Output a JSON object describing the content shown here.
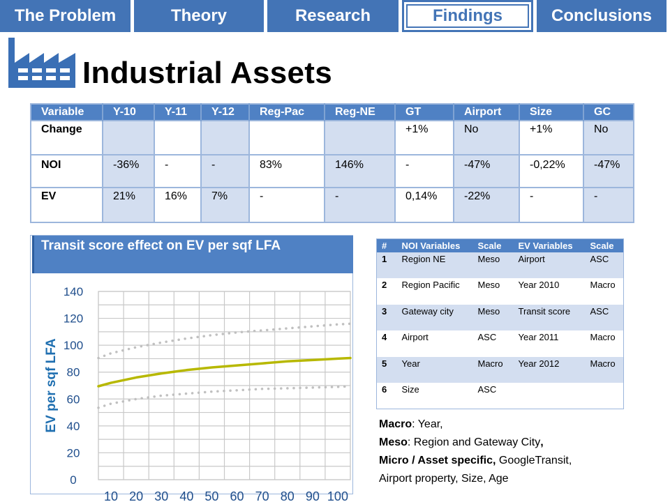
{
  "nav": {
    "tabs": [
      {
        "label": "The Problem",
        "width": 187,
        "active": false
      },
      {
        "label": "Theory",
        "width": 186,
        "active": false
      },
      {
        "label": "Research",
        "width": 188,
        "active": false
      },
      {
        "label": "Findings",
        "width": 188,
        "active": true
      },
      {
        "label": "Conclusions",
        "width": 186,
        "active": false
      }
    ]
  },
  "page": {
    "title": "Industrial Assets"
  },
  "main_table": {
    "headers": [
      "Variable",
      "Y-10",
      "Y-11",
      "Y-12",
      "Reg-Pac",
      "Reg-NE",
      "GT",
      "Airport",
      "Size",
      "GC"
    ],
    "rows": [
      {
        "cells": [
          "Change",
          "",
          "",
          "",
          "",
          "",
          "+1%",
          "No",
          "+1%",
          "No"
        ]
      },
      {
        "cells": [
          "NOI",
          "-36%",
          "-",
          "-",
          "83%",
          "146%",
          "-",
          "-47%",
          "-0,22%",
          "-47%"
        ]
      },
      {
        "cells": [
          "EV",
          "21%",
          "16%",
          "7%",
          "-",
          "-",
          "0,14%",
          "-22%",
          "-",
          "-"
        ]
      }
    ]
  },
  "chart_data": {
    "type": "line",
    "title": "Transit score effect on EV per sqf LFA",
    "xlabel": "",
    "ylabel": "EV per sqf LFA",
    "xlim": [
      5,
      105
    ],
    "ylim": [
      0,
      140
    ],
    "x_ticks": [
      10,
      20,
      30,
      40,
      50,
      60,
      70,
      80,
      90,
      100
    ],
    "y_ticks": [
      0,
      20,
      40,
      60,
      80,
      100,
      120,
      140
    ],
    "grid": true,
    "series": [
      {
        "role": "fit",
        "color": "#b7b800",
        "style": "solid",
        "x": [
          5,
          10,
          20,
          30,
          40,
          50,
          60,
          70,
          80,
          90,
          100,
          105
        ],
        "y": [
          69.5,
          72,
          76,
          79,
          81.5,
          83.5,
          85,
          86.5,
          88,
          89,
          90,
          90.5
        ]
      },
      {
        "role": "upper-bound",
        "color": "#c0c0c0",
        "style": "dotted",
        "x": [
          5,
          10,
          20,
          30,
          40,
          50,
          60,
          70,
          80,
          90,
          100,
          105
        ],
        "y": [
          90.5,
          94,
          98.5,
          102,
          105,
          107.5,
          109.5,
          111,
          112.5,
          114,
          115.5,
          116
        ]
      },
      {
        "role": "lower-bound",
        "color": "#c0c0c0",
        "style": "dotted",
        "x": [
          5,
          10,
          20,
          30,
          40,
          50,
          60,
          70,
          80,
          90,
          100,
          105
        ],
        "y": [
          53.5,
          56.5,
          60,
          62.5,
          64,
          65.5,
          66.5,
          67.5,
          68,
          68.5,
          69,
          69.5
        ]
      }
    ]
  },
  "var_table": {
    "headers": [
      "#",
      "NOI Variables",
      "Scale",
      "EV Variables",
      "Scale"
    ],
    "rows": [
      {
        "cells": [
          "1",
          "Region NE",
          "Meso",
          "Airport",
          "ASC"
        ],
        "shade": true
      },
      {
        "cells": [
          "2",
          "Region Pacific",
          "Meso",
          "Year 2010",
          "Macro"
        ],
        "shade": false
      },
      {
        "cells": [
          "3",
          "Gateway city",
          "Meso",
          "Transit score",
          "ASC"
        ],
        "shade": true
      },
      {
        "cells": [
          "4",
          "Airport",
          "ASC",
          "Year 2011",
          "Macro"
        ],
        "shade": false
      },
      {
        "cells": [
          "5",
          "Year",
          "Macro",
          "Year 2012",
          "Macro"
        ],
        "shade": true
      },
      {
        "cells": [
          "6",
          "Size",
          "ASC",
          "",
          ""
        ],
        "shade": false
      }
    ]
  },
  "notes": {
    "macro_label": "Macro",
    "macro_text": ": Year,",
    "meso_label": "Meso",
    "meso_text": ": Region and Gateway City",
    "meso_comma": ",",
    "micro_label": "Micro / Asset specific,",
    "micro_text": " GoogleTransit,",
    "micro_text2": "Airport property, Size, Age"
  },
  "colors": {
    "accent": "#4374b6",
    "header_fill": "#4f81c4",
    "row_shade": "#d3def0",
    "fit_line": "#b7b800"
  }
}
